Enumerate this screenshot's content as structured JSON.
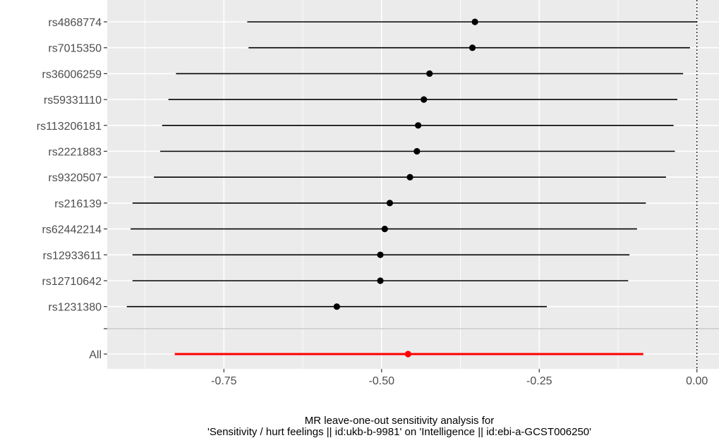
{
  "chart_data": {
    "type": "forest",
    "title": "",
    "xlabel_lines": [
      "MR leave-one-out sensitivity analysis for",
      "'Sensitivity / hurt feelings || id:ukb-b-9981' on 'Intelligence || id:ebi-a-GCST006250'"
    ],
    "ylabel": "",
    "xlim": [
      -0.935,
      0.035
    ],
    "xticks": [
      -0.75,
      -0.5,
      -0.25,
      0.0
    ],
    "xtick_labels": [
      "-0.75",
      "-0.50",
      "-0.25",
      "0.00"
    ],
    "reference_line": 0.0,
    "snps": [
      {
        "label": "rs4868774",
        "estimate": -0.352,
        "lower": -0.713,
        "upper": 0.0
      },
      {
        "label": "rs7015350",
        "estimate": -0.356,
        "lower": -0.711,
        "upper": -0.011
      },
      {
        "label": "rs36006259",
        "estimate": -0.424,
        "lower": -0.826,
        "upper": -0.022
      },
      {
        "label": "rs59331110",
        "estimate": -0.433,
        "lower": -0.838,
        "upper": -0.031
      },
      {
        "label": "rs113206181",
        "estimate": -0.442,
        "lower": -0.848,
        "upper": -0.037
      },
      {
        "label": "rs2221883",
        "estimate": -0.444,
        "lower": -0.851,
        "upper": -0.035
      },
      {
        "label": "rs9320507",
        "estimate": -0.455,
        "lower": -0.861,
        "upper": -0.049
      },
      {
        "label": "rs216139",
        "estimate": -0.487,
        "lower": -0.895,
        "upper": -0.081
      },
      {
        "label": "rs62442214",
        "estimate": -0.495,
        "lower": -0.898,
        "upper": -0.095
      },
      {
        "label": "rs12933611",
        "estimate": -0.502,
        "lower": -0.895,
        "upper": -0.107
      },
      {
        "label": "rs12710642",
        "estimate": -0.502,
        "lower": -0.895,
        "upper": -0.109
      },
      {
        "label": "rs1231380",
        "estimate": -0.571,
        "lower": -0.904,
        "upper": -0.238
      }
    ],
    "overall": {
      "label": "All",
      "estimate": -0.458,
      "lower": -0.828,
      "upper": -0.085
    },
    "colors": {
      "panel": "#ebebeb",
      "grid": "#ffffff",
      "snp": "#000000",
      "overall": "#ff0000",
      "separator": "#c8c8c8",
      "tick_text": "#4d4d4d",
      "tick_mark": "#333333"
    },
    "grid": true,
    "legend": "none"
  }
}
